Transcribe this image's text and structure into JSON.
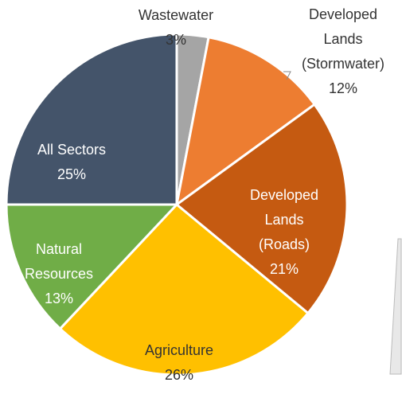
{
  "chart_data": {
    "type": "pie",
    "categories": [
      "Wastewater",
      "Developed Lands (Stormwater)",
      "Developed Lands (Roads)",
      "Agriculture",
      "Natural Resources",
      "All Sectors"
    ],
    "values": [
      3,
      12,
      21,
      26,
      13,
      25
    ],
    "value_labels": [
      "3%",
      "12%",
      "21%",
      "26%",
      "13%",
      "25%"
    ],
    "colors": [
      "#a5a5a5",
      "#ed7d31",
      "#c55a11",
      "#ffc000",
      "#70ad47",
      "#44546a"
    ]
  }
}
